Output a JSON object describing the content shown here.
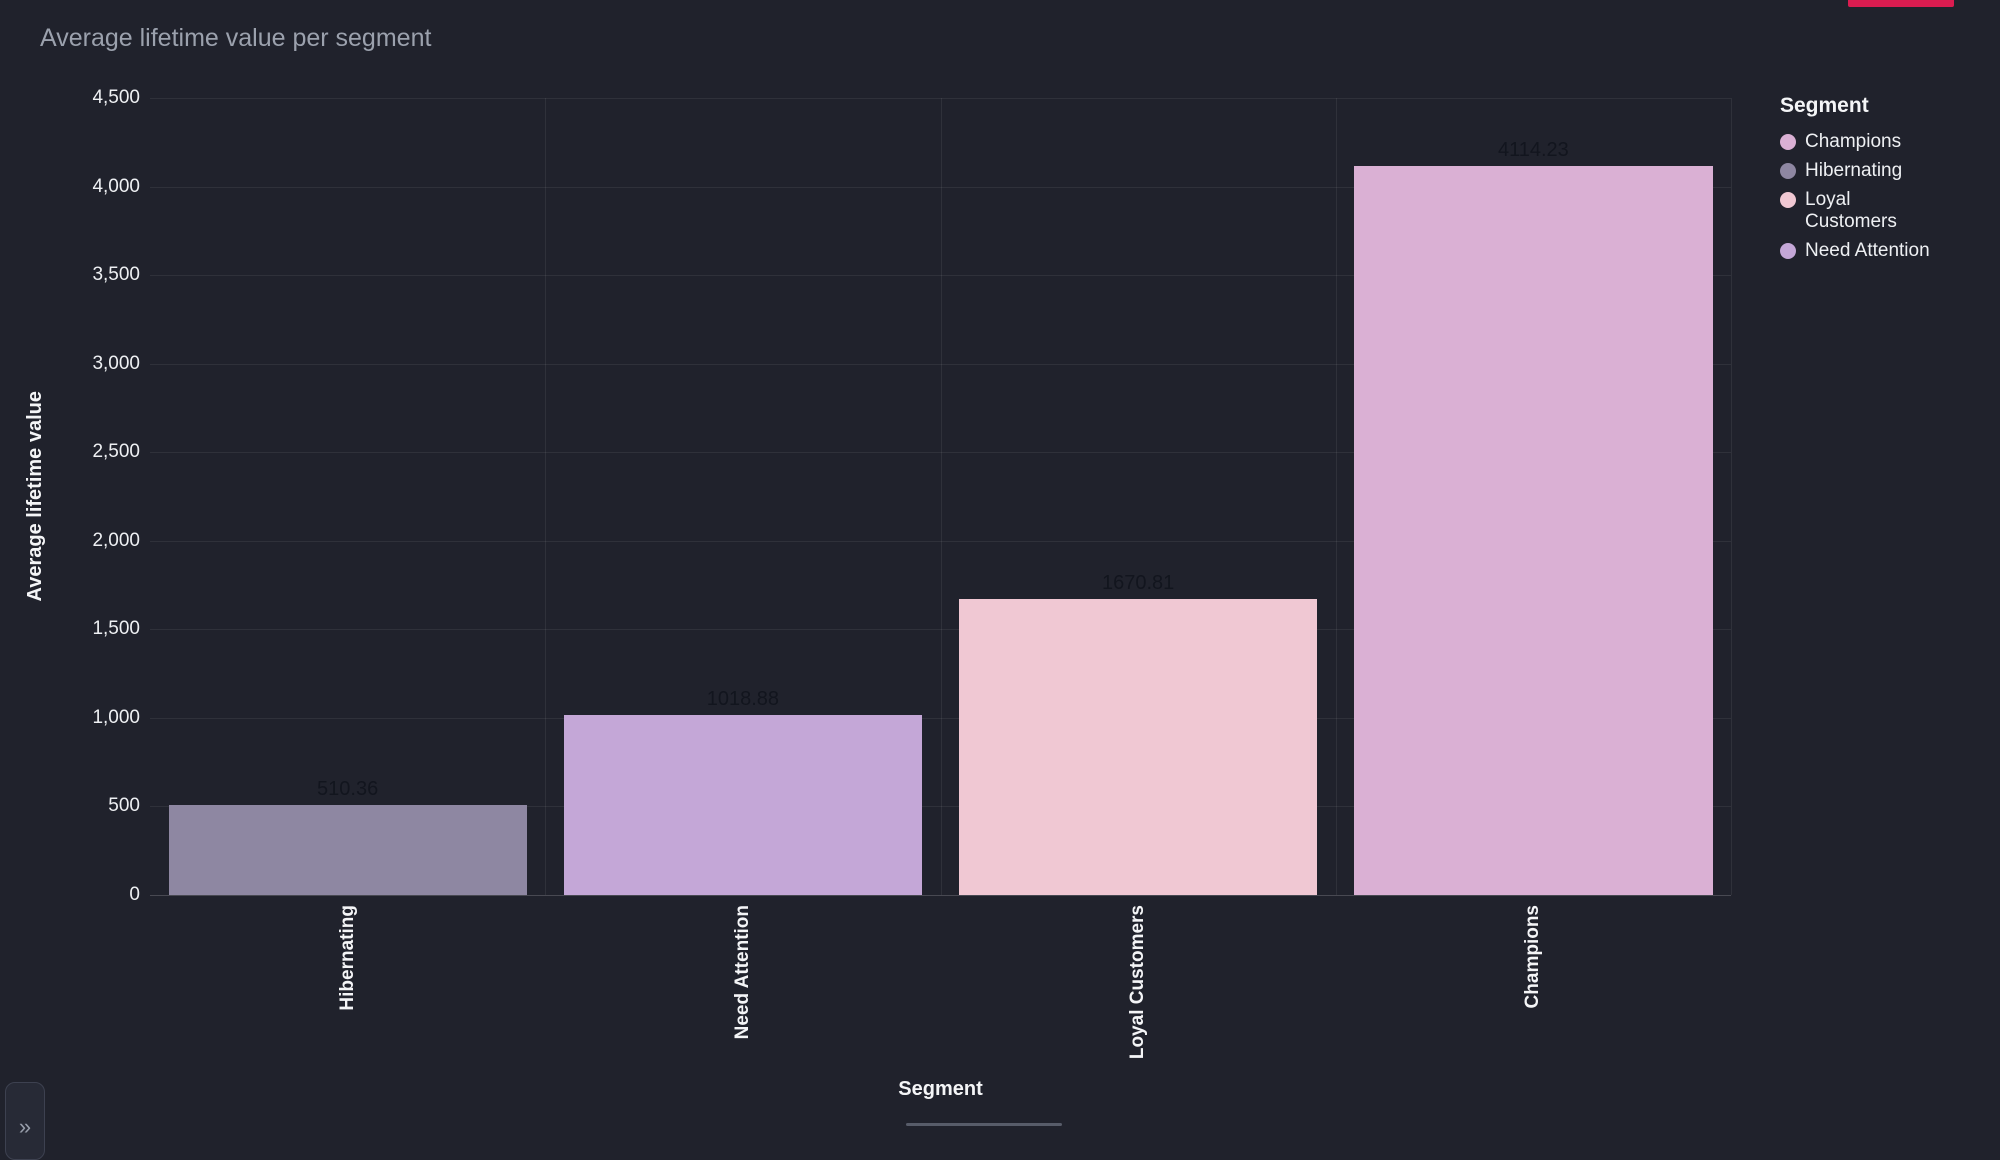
{
  "page": {
    "background": "#20222c"
  },
  "chart_data": {
    "type": "bar",
    "title": "Average lifetime value per segment",
    "xlabel": "Segment",
    "ylabel": "Average lifetime value",
    "categories": [
      "Hibernating",
      "Need Attention",
      "Loyal Customers",
      "Champions"
    ],
    "values": [
      510.36,
      1018.88,
      1670.81,
      4114.23
    ],
    "value_labels": [
      "510.36",
      "1018.88",
      "1670.81",
      "4114.23"
    ],
    "bar_colors": [
      "#8e87a2",
      "#c4a7d7",
      "#f0c8d3",
      "#dab0d4"
    ],
    "ylim": [
      0,
      4500
    ],
    "ytick_step": 500,
    "yticks": [
      "0",
      "500",
      "1,000",
      "1,500",
      "2,000",
      "2,500",
      "3,000",
      "3,500",
      "4,000",
      "4,500"
    ],
    "grid": true,
    "legend": {
      "title": "Segment",
      "position": "right",
      "items": [
        {
          "label": "Champions",
          "color": "#dab0d4"
        },
        {
          "label": "Hibernating",
          "color": "#8e87a2"
        },
        {
          "label": "Loyal Customers",
          "color": "#f0c8d3"
        },
        {
          "label": "Need Attention",
          "color": "#c4a7d7"
        }
      ]
    }
  },
  "colors": {
    "background": "#20222c",
    "title_text": "#9ba1ad",
    "axis_text": "#f2f4f6",
    "value_label_text": "#12151e",
    "gridline": "#ffffff12",
    "axis_line": "#ffffff2e",
    "accent_strip": "#da1c50"
  },
  "controls": {
    "expand_label": "»"
  }
}
